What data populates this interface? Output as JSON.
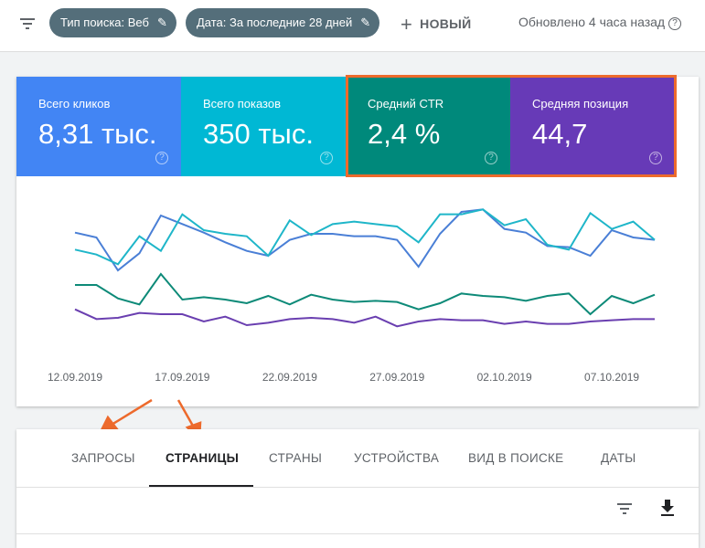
{
  "topbar": {
    "filter_icon": "filter-icon",
    "chips": [
      {
        "label": "Тип поиска: Веб"
      },
      {
        "label": "Дата: За последние 28 дней"
      }
    ],
    "new_label": "НОВЫЙ",
    "updated": "Обновлено 4 часа назад"
  },
  "metrics": [
    {
      "label": "Всего кликов",
      "value": "8,31 тыс.",
      "color": "#4285f4"
    },
    {
      "label": "Всего показов",
      "value": "350 тыс.",
      "color": "#00b8d4"
    },
    {
      "label": "Средний CTR",
      "value": "2,4 %",
      "color": "#00897b"
    },
    {
      "label": "Средняя позиция",
      "value": "44,7",
      "color": "#673ab7"
    }
  ],
  "highlight_color": "#ed6a2c",
  "chart_data": {
    "type": "line",
    "x_start": "12.09.2019",
    "x_end": "09.10.2019",
    "tick_labels": [
      "12.09.2019",
      "17.09.2019",
      "22.09.2019",
      "27.09.2019",
      "02.10.2019",
      "07.10.2019"
    ],
    "y_axis": "hidden, relative scale",
    "grid": false,
    "series": [
      {
        "metric": "clicks",
        "color": "#4a7fd6",
        "values": [
          79,
          75,
          48,
          62,
          93,
          86,
          79,
          71,
          64,
          60,
          73,
          78,
          78,
          76,
          76,
          73,
          51,
          78,
          96,
          98,
          82,
          79,
          68,
          67,
          60,
          81,
          75,
          73
        ]
      },
      {
        "metric": "impressions",
        "color": "#1fb6c9",
        "values": [
          65,
          61,
          53,
          76,
          64,
          94,
          81,
          78,
          76,
          60,
          89,
          77,
          86,
          88,
          86,
          84,
          71,
          94,
          94,
          98,
          85,
          90,
          69,
          65,
          95,
          82,
          88,
          73
        ]
      },
      {
        "metric": "ctr",
        "color": "#0d8a78",
        "values": [
          36,
          36,
          25,
          20,
          45,
          24,
          26,
          24,
          21,
          27,
          20,
          28,
          24,
          22,
          23,
          22,
          16,
          21,
          29,
          27,
          26,
          23,
          27,
          29,
          12,
          27,
          21,
          28
        ]
      },
      {
        "metric": "position",
        "color": "#6a3fb0",
        "values": [
          16,
          8,
          9,
          13,
          12,
          12,
          6,
          10,
          3,
          5,
          8,
          9,
          8,
          5,
          10,
          2,
          6,
          8,
          7,
          7,
          4,
          6,
          4,
          4,
          6,
          7,
          8,
          8
        ]
      }
    ]
  },
  "tabs": [
    {
      "label": "ЗАПРОСЫ"
    },
    {
      "label": "СТРАНИЦЫ",
      "active": true
    },
    {
      "label": "СТРАНЫ"
    },
    {
      "label": "УСТРОЙСТВА"
    },
    {
      "label": "ВИД В ПОИСКЕ"
    },
    {
      "label": "ДАТЫ"
    }
  ],
  "table_toolbar": {
    "icons": [
      "filter-icon",
      "download-icon"
    ]
  }
}
